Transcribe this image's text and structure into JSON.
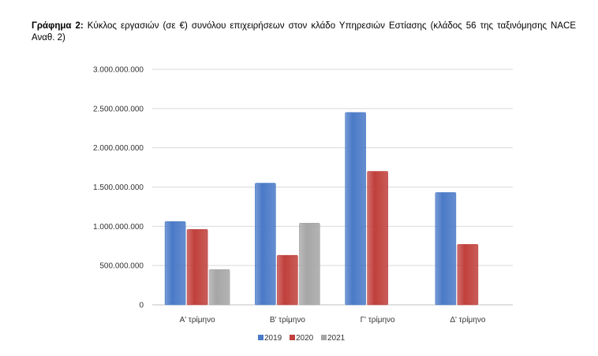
{
  "caption": {
    "label": "Γράφημα 2:",
    "text": "Κύκλος εργασιών (σε €) συνόλου επιχειρήσεων στον κλάδο Υπηρεσιών Εστίασης (κλάδος 56 της ταξινόμησης NACE Αναθ. 2)"
  },
  "chart_data": {
    "type": "bar",
    "categories": [
      "Α' τρίμηνο",
      "Β' τρίμηνο",
      "Γ' τρίμηνο",
      "Δ' τρίμηνο"
    ],
    "series": [
      {
        "name": "2019",
        "color": "#4a7ac7",
        "values": [
          1060000000,
          1550000000,
          2450000000,
          1430000000
        ]
      },
      {
        "name": "2020",
        "color": "#c0403c",
        "values": [
          960000000,
          630000000,
          1700000000,
          770000000
        ]
      },
      {
        "name": "2021",
        "color": "#a6a6a6",
        "values": [
          450000000,
          1040000000,
          null,
          null
        ]
      }
    ],
    "ylim": [
      0,
      3000000000
    ],
    "yticks": [
      0,
      500000000,
      1000000000,
      1500000000,
      2000000000,
      2500000000,
      3000000000
    ],
    "ytick_labels": [
      "0",
      "500.000.000",
      "1.000.000.000",
      "1.500.000.000",
      "2.000.000.000",
      "2.500.000.000",
      "3.000.000.000"
    ],
    "grid": true,
    "legend_position": "bottom"
  }
}
